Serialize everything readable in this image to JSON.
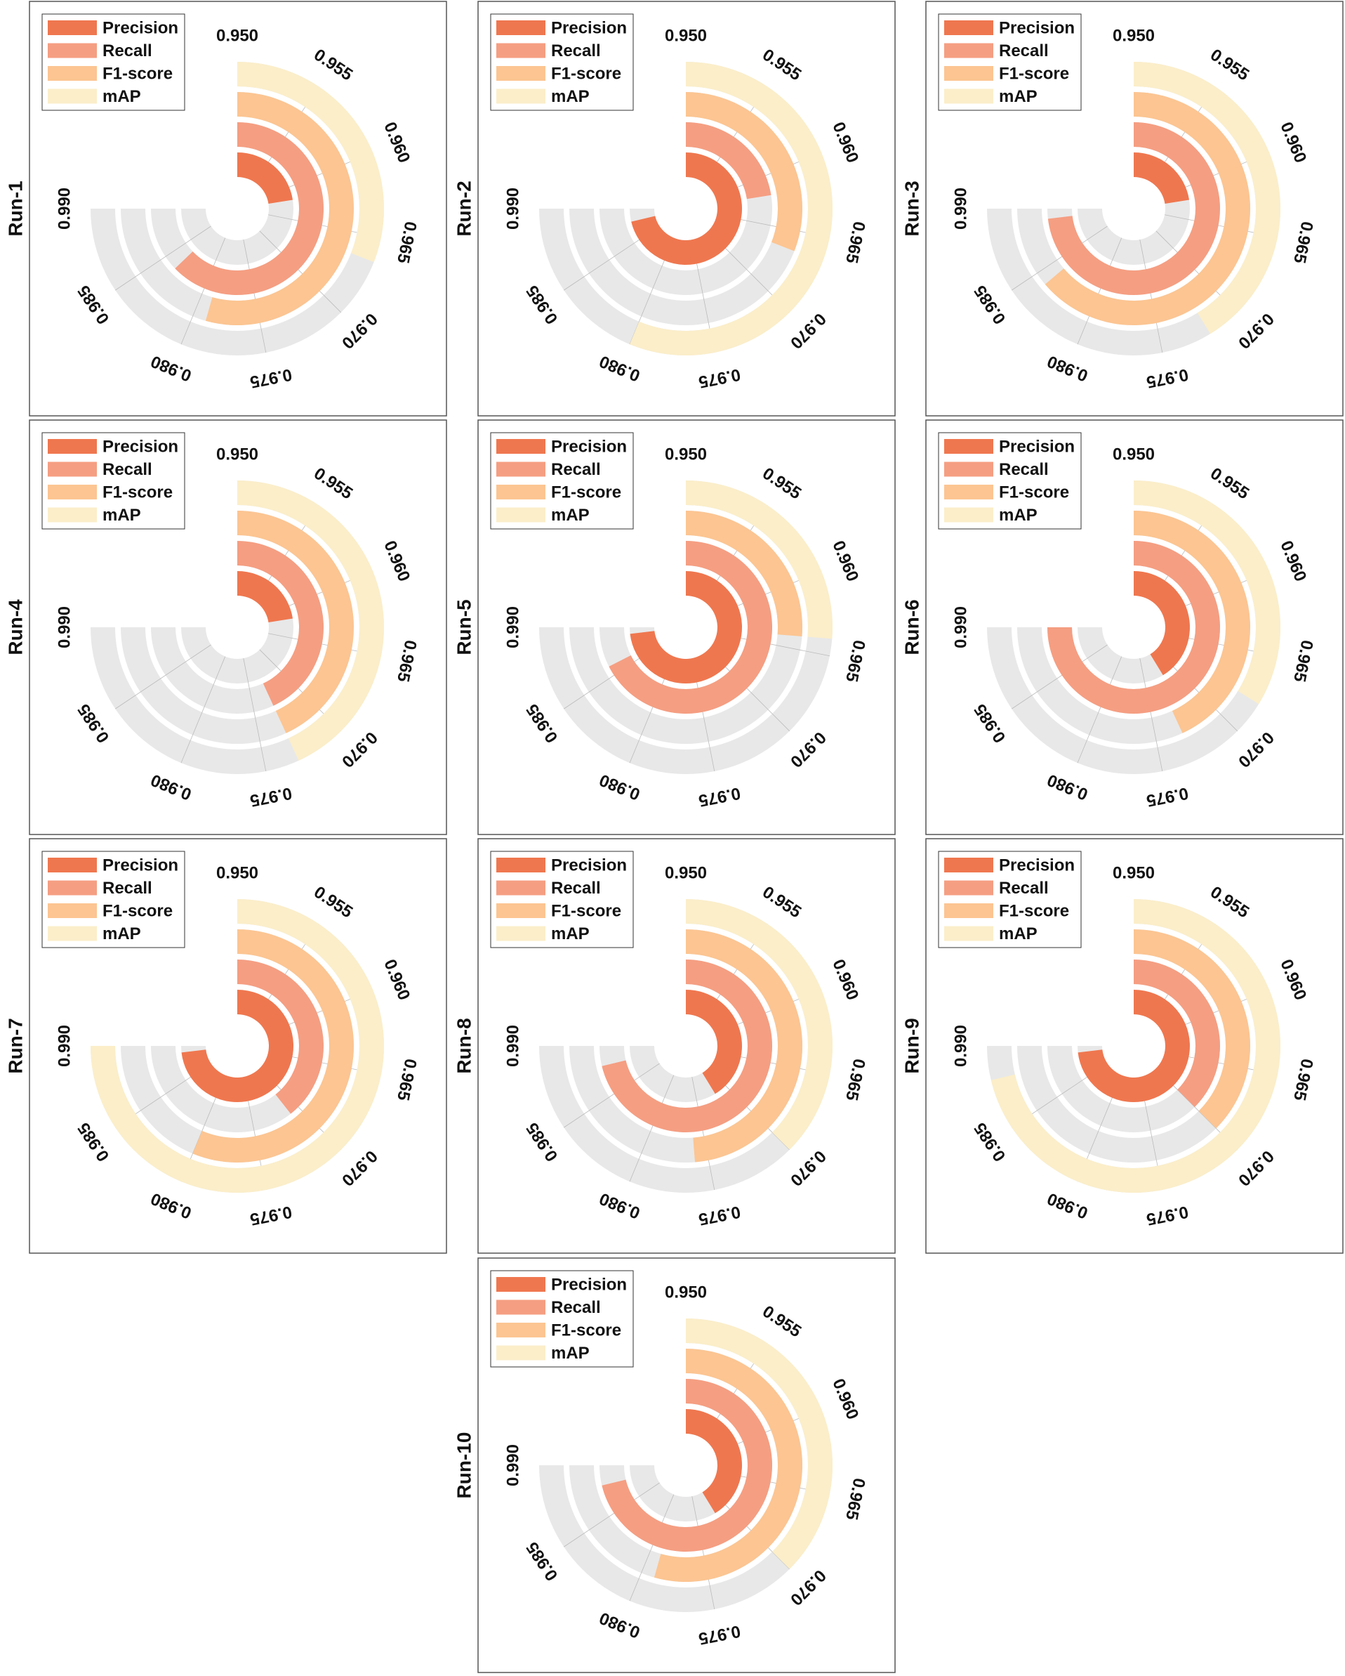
{
  "chart_data": {
    "type": "radial_bar",
    "angular_axis": {
      "min": 0.95,
      "max": 0.99,
      "ticks": [
        "0.950",
        "0.955",
        "0.960",
        "0.965",
        "0.970",
        "0.975",
        "0.980",
        "0.985",
        "0.990"
      ]
    },
    "metrics": [
      "Precision",
      "Recall",
      "F1-score",
      "mAP"
    ],
    "colors": {
      "Precision": "#ef774f",
      "Recall": "#f59e82",
      "F1-score": "#fcc592",
      "mAP": "#fbeec9",
      "track": "#e8e8e8",
      "grid": "#bbbbbb",
      "frame": "#555555"
    },
    "runs": [
      {
        "name": "Run-1",
        "values": {
          "Precision": 0.962,
          "Recall": 0.9835,
          "F1-score": 0.979,
          "mAP": 0.9665
        }
      },
      {
        "name": "Run-2",
        "values": {
          "Precision": 0.988,
          "Recall": 0.962,
          "F1-score": 0.9665,
          "mAP": 0.98
        }
      },
      {
        "name": "Run-3",
        "values": {
          "Precision": 0.962,
          "Recall": 0.989,
          "F1-score": 0.984,
          "mAP": 0.972
        }
      },
      {
        "name": "Run-4",
        "values": {
          "Precision": 0.962,
          "Recall": 0.973,
          "F1-score": 0.973,
          "mAP": 0.973
        }
      },
      {
        "name": "Run-5",
        "values": {
          "Precision": 0.989,
          "Recall": 0.986,
          "F1-score": 0.964,
          "mAP": 0.964
        }
      },
      {
        "name": "Run-6",
        "values": {
          "Precision": 0.972,
          "Recall": 0.99,
          "F1-score": 0.973,
          "mAP": 0.968
        }
      },
      {
        "name": "Run-7",
        "values": {
          "Precision": 0.989,
          "Recall": 0.971,
          "F1-score": 0.98,
          "mAP": 0.99
        }
      },
      {
        "name": "Run-8",
        "values": {
          "Precision": 0.972,
          "Recall": 0.988,
          "F1-score": 0.976,
          "mAP": 0.97
        }
      },
      {
        "name": "Run-9",
        "values": {
          "Precision": 0.989,
          "Recall": 0.97,
          "F1-score": 0.97,
          "mAP": 0.988
        }
      },
      {
        "name": "Run-10",
        "values": {
          "Precision": 0.972,
          "Recall": 0.988,
          "F1-score": 0.979,
          "mAP": 0.97
        }
      }
    ]
  }
}
